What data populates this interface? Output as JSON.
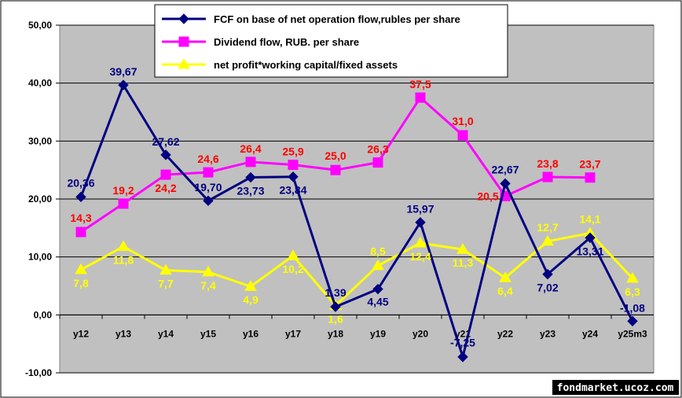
{
  "chart_data": {
    "type": "line",
    "categories": [
      "y12",
      "y13",
      "y14",
      "y15",
      "y16",
      "y17",
      "y18",
      "y19",
      "y20",
      "y21",
      "y22",
      "y23",
      "y24",
      "y25m3"
    ],
    "ylim": [
      -10,
      50
    ],
    "yticks": [
      "-10,00",
      "0,00",
      "10,00",
      "20,00",
      "30,00",
      "40,00",
      "50,00"
    ],
    "ytick_values": [
      -10,
      0,
      10,
      20,
      30,
      40,
      50
    ],
    "grid": true,
    "legend_position": "top",
    "series": [
      {
        "name": "FCF on base of net operation flow,rubles per share",
        "color": "#000080",
        "marker": "diamond",
        "values": [
          20.36,
          39.67,
          27.62,
          19.7,
          23.73,
          23.84,
          1.39,
          4.45,
          15.97,
          -7.25,
          22.67,
          7.02,
          13.31,
          -1.08
        ],
        "labels": [
          "20,36",
          "39,67",
          "27,62",
          "19,70",
          "23,73",
          "23,84",
          "1,39",
          "4,45",
          "15,97",
          "-7,25",
          "22,67",
          "7,02",
          "13,31",
          "-1,08"
        ],
        "label_color": "#000080"
      },
      {
        "name": "Dividend flow, RUB. per share",
        "color": "#ff00ff",
        "marker": "square",
        "values": [
          14.3,
          19.2,
          24.2,
          24.6,
          26.4,
          25.9,
          25.0,
          26.3,
          37.5,
          31.0,
          20.5,
          23.8,
          23.7,
          null
        ],
        "labels": [
          "14,3",
          "19,2",
          "24,2",
          "24,6",
          "26,4",
          "25,9",
          "25,0",
          "26,3",
          "37,5",
          "31,0",
          "20,5",
          "23,8",
          "23,7",
          ""
        ],
        "label_color": "#ff0000"
      },
      {
        "name": "net profit*working capital/fixed assets",
        "color": "#ffff00",
        "marker": "triangle",
        "values": [
          7.8,
          11.8,
          7.7,
          7.4,
          4.9,
          10.2,
          1.6,
          8.5,
          12.4,
          11.3,
          6.4,
          12.7,
          14.1,
          6.3
        ],
        "labels": [
          "7,8",
          "11,8",
          "7,7",
          "7,4",
          "4,9",
          "10,2",
          "1,6",
          "8,5",
          "12,4",
          "11,3",
          "6,4",
          "12,7",
          "14,1",
          "6,3"
        ],
        "label_color": "#ffff00"
      }
    ]
  },
  "watermark": "fondmarket.ucoz.com",
  "colors": {
    "plot_bg": "#c0c0c0",
    "watermark_bg": "#000000"
  }
}
